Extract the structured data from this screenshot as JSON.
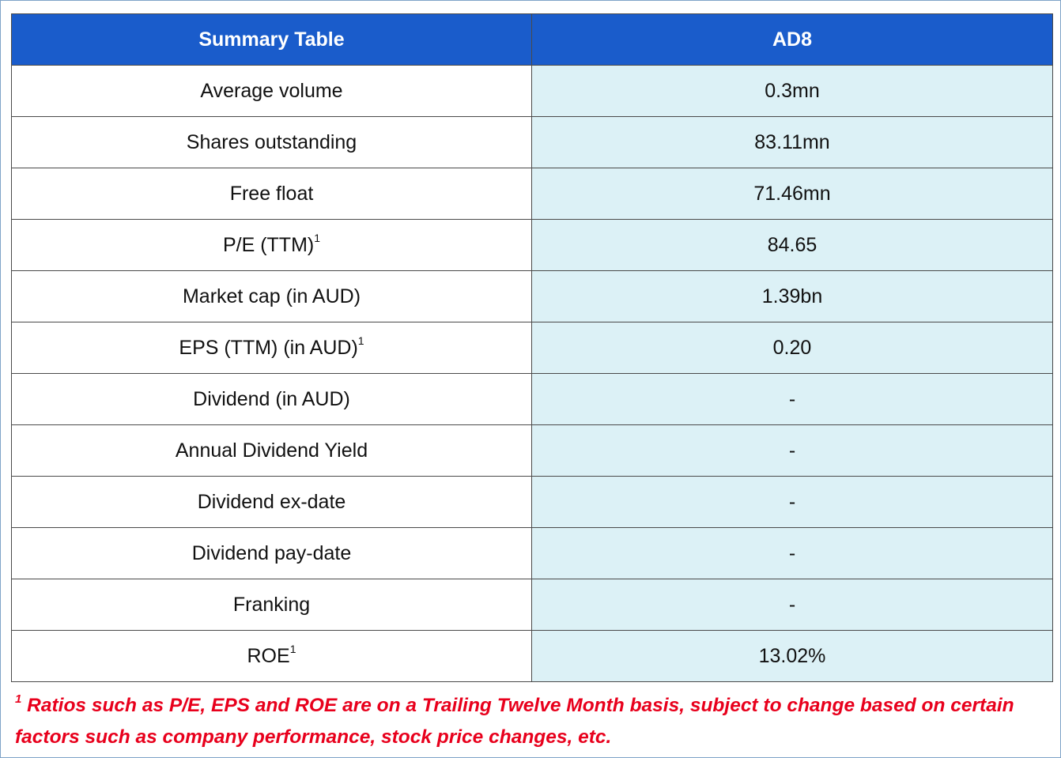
{
  "table": {
    "header": [
      "Summary Table",
      "AD8"
    ],
    "rows": [
      {
        "label": "Average volume",
        "value": "0.3mn"
      },
      {
        "label": "Shares outstanding",
        "value": "83.11mn"
      },
      {
        "label": "Free float",
        "value": "71.46mn"
      },
      {
        "label": "P/E (TTM)",
        "note": "1",
        "value": "84.65"
      },
      {
        "label": "Market cap (in AUD)",
        "value": "1.39bn"
      },
      {
        "label": "EPS (TTM) (in AUD)",
        "note": "1",
        "value": "0.20"
      },
      {
        "label": "Dividend (in AUD)",
        "value": "-"
      },
      {
        "label": "Annual Dividend Yield",
        "value": "-"
      },
      {
        "label": "Dividend ex-date",
        "value": "-"
      },
      {
        "label": "Dividend pay-date",
        "value": "-"
      },
      {
        "label": "Franking",
        "value": "-"
      },
      {
        "label": "ROE",
        "note": "1",
        "value": "13.02%"
      }
    ]
  },
  "footnote": {
    "marker": "1",
    "text": "Ratios such as P/E, EPS and ROE are on a Trailing Twelve Month basis, subject to change based on certain factors such as company performance, stock price changes, etc."
  }
}
